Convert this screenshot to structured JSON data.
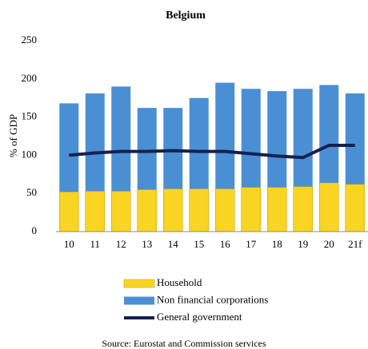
{
  "chart_data": {
    "type": "bar",
    "title": "Belgium",
    "ylabel": "% of GDP",
    "categories": [
      "10",
      "11",
      "12",
      "13",
      "14",
      "15",
      "16",
      "17",
      "18",
      "19",
      "20",
      "21f"
    ],
    "series": [
      {
        "name": "Household",
        "color": "#f9d423",
        "values": [
          52,
          53,
          53,
          55,
          56,
          56,
          56,
          58,
          58,
          59,
          64,
          62
        ]
      },
      {
        "name": "Non financial corporations",
        "color": "#4a8fd4",
        "values": [
          116,
          128,
          137,
          107,
          106,
          119,
          139,
          129,
          126,
          128,
          128,
          119
        ]
      },
      {
        "name": "General government",
        "color": "#16204f",
        "type": "line",
        "values": [
          100,
          103,
          105,
          105,
          106,
          105,
          105,
          102,
          99,
          97,
          113,
          113
        ]
      }
    ],
    "ylim": [
      0,
      250
    ],
    "yticks": [
      0,
      50,
      100,
      150,
      200,
      250
    ],
    "stacked": true,
    "source": "Source: Eurostat and Commission services"
  }
}
